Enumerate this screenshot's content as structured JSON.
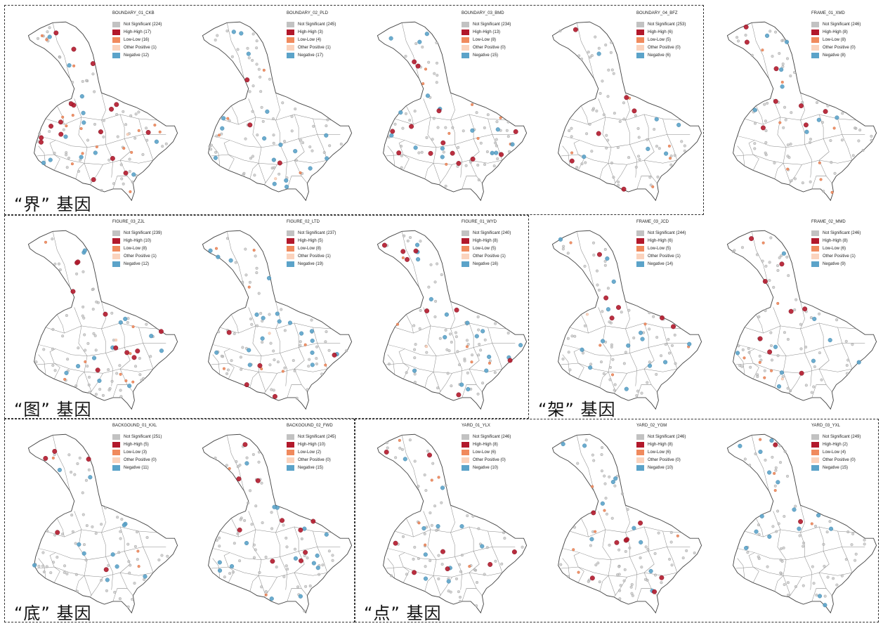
{
  "colors": {
    "not_significant": "#c2c2c2",
    "high_high": "#b2182b",
    "low_low": "#f08a5d",
    "other_positive": "#fbd3bd",
    "negative": "#5ba3c9"
  },
  "groups": [
    {
      "id": "jie",
      "label": "“界” 基因"
    },
    {
      "id": "tu",
      "label": "“图” 基因"
    },
    {
      "id": "jia",
      "label": "“架” 基因"
    },
    {
      "id": "di",
      "label": "“底” 基因"
    },
    {
      "id": "dian",
      "label": "“点” 基因"
    }
  ],
  "legend_labels": [
    "Not Significant",
    "High-High",
    "Low-Low",
    "Other Positive",
    "Negative"
  ],
  "panels": [
    {
      "title": "BOUNDARY_01_CKB",
      "counts": [
        224,
        17,
        16,
        1,
        12
      ]
    },
    {
      "title": "BOUNDARY_02_PLD",
      "counts": [
        245,
        3,
        4,
        1,
        17
      ]
    },
    {
      "title": "BOUNDARY_03_BMD",
      "counts": [
        234,
        13,
        8,
        0,
        15
      ]
    },
    {
      "title": "BOUNDARY_04_BFZ",
      "counts": [
        253,
        6,
        5,
        0,
        6
      ]
    },
    {
      "title": "FRAME_01_XMD",
      "counts": [
        246,
        8,
        8,
        0,
        8
      ]
    },
    {
      "title": "FIGURE_03_ZJL",
      "counts": [
        239,
        10,
        8,
        1,
        12
      ]
    },
    {
      "title": "FIGURE_02_LTD",
      "counts": [
        237,
        5,
        8,
        1,
        19
      ]
    },
    {
      "title": "FIGURE_01_WYD",
      "counts": [
        240,
        8,
        5,
        1,
        16
      ]
    },
    {
      "title": "FRAME_03_JCD",
      "counts": [
        244,
        6,
        5,
        1,
        14
      ]
    },
    {
      "title": "FRAME_02_MMD",
      "counts": [
        246,
        8,
        6,
        1,
        9
      ]
    },
    {
      "title": "BACKGOUND_01_KXL",
      "counts": [
        251,
        5,
        3,
        0,
        11
      ]
    },
    {
      "title": "BACKGOUND_02_FWD",
      "counts": [
        245,
        10,
        2,
        0,
        15
      ]
    },
    {
      "title": "YARD_01_YLX",
      "counts": [
        246,
        8,
        6,
        0,
        10
      ]
    },
    {
      "title": "YARD_02_YGM",
      "counts": [
        246,
        8,
        6,
        0,
        10
      ]
    },
    {
      "title": "YARD_03_YXL",
      "counts": [
        249,
        2,
        4,
        0,
        15
      ]
    }
  ]
}
